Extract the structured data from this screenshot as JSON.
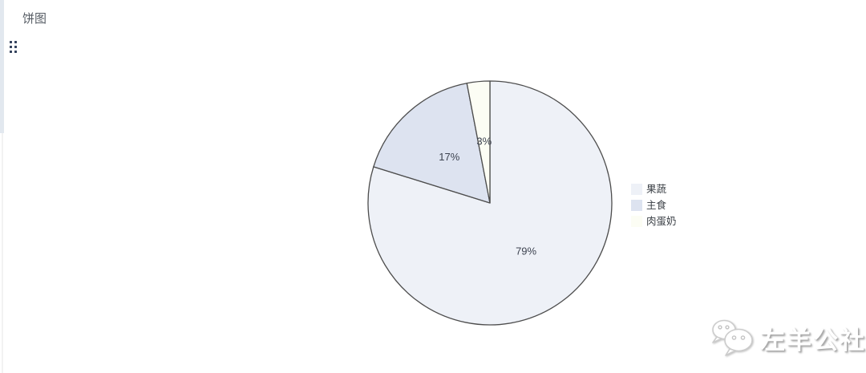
{
  "panel": {
    "title": "饼图"
  },
  "icons": {
    "drag_handle": "drag-handle-icon",
    "watermark_logo": "wechat-logo-icon"
  },
  "chart_data": {
    "type": "pie",
    "title": "饼图",
    "categories": [
      "果蔬",
      "主食",
      "肉蛋奶"
    ],
    "values": [
      79,
      17,
      3
    ],
    "value_labels": [
      "79%",
      "17%",
      "3%"
    ],
    "unit": "%",
    "colors": [
      "#eef1f7",
      "#dde3f0",
      "#fcfdf4"
    ],
    "stroke_color": "#4d4d4d",
    "stroke_width": 1.3,
    "label_color": "#3d4350",
    "legend_position": "right",
    "start_angle_deg": 0,
    "clockwise": true,
    "label_radius_ratio": 0.5
  },
  "watermark": {
    "text": "左羊公社"
  }
}
